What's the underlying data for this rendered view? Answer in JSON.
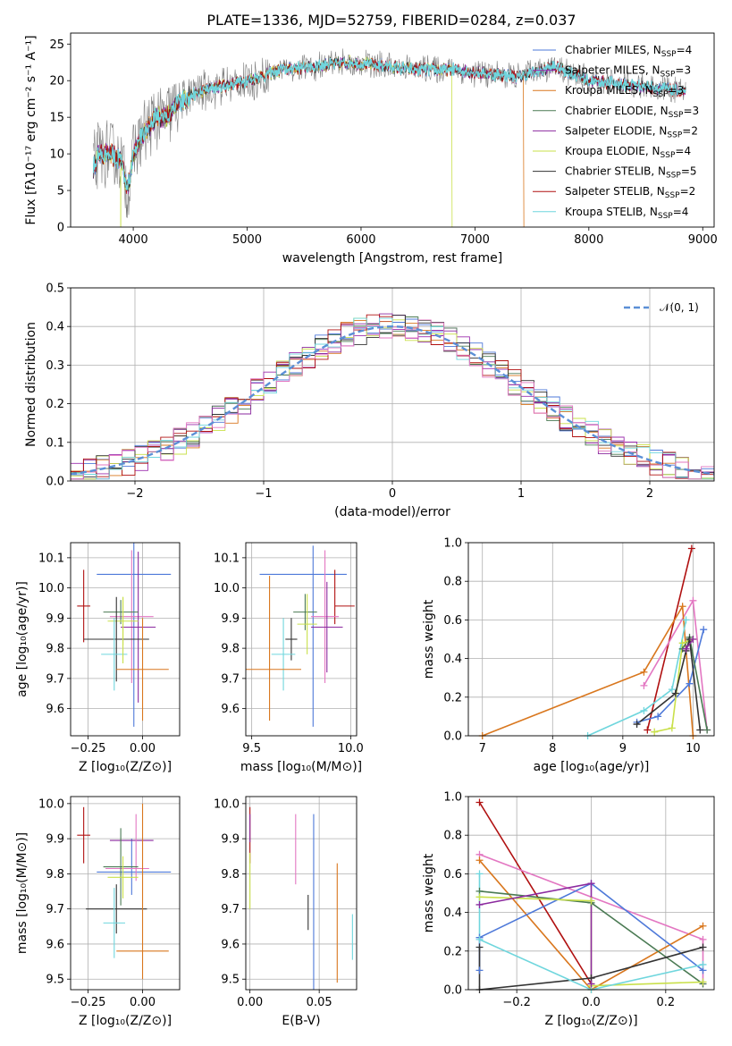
{
  "figure": {
    "title": "PLATE=1336, MJD=52759, FIBERID=0284, z=0.037"
  },
  "colors": {
    "Chabrier MILES": "#4e79d9",
    "Salpeter MILES": "#9c2fae",
    "Kroupa MILES": "#d9771e",
    "Chabrier ELODIE": "#4a7a53",
    "Salpeter ELODIE": "#8b2a9f",
    "Kroupa ELODIE": "#c9e04a",
    "Chabrier STELIB": "#333333",
    "Salpeter STELIB": "#b01010",
    "Kroupa STELIB": "#6fd6dd",
    "pink": "#e377c2",
    "data": "#7f7f7f"
  },
  "chart_data": [
    {
      "id": "spectrum",
      "type": "line",
      "title": "PLATE=1336, MJD=52759, FIBERID=0284, z=0.037",
      "xlabel": "wavelength [Angstrom, rest frame]",
      "ylabel": "Flux [fλ10⁻¹⁷ erg cm⁻² s⁻¹ A⁻¹]",
      "xlim": [
        3450,
        9100
      ],
      "ylim": [
        0,
        26.5
      ],
      "xticks": [
        4000,
        5000,
        6000,
        7000,
        8000,
        9000
      ],
      "yticks": [
        0,
        5,
        10,
        15,
        20,
        25
      ],
      "legend_position": "top-right",
      "legend": [
        {
          "label": "Chabrier MILES, N",
          "sub": "SSP",
          "suffix": "=4",
          "color": "#4e79d9"
        },
        {
          "label": "Salpeter MILES, N",
          "sub": "SSP",
          "suffix": "=3",
          "color": "#9c2fae"
        },
        {
          "label": "Kroupa MILES, N",
          "sub": "SSP",
          "suffix": "=3",
          "color": "#d9771e"
        },
        {
          "label": "Chabrier ELODIE, N",
          "sub": "SSP",
          "suffix": "=3",
          "color": "#4a7a53"
        },
        {
          "label": "Salpeter ELODIE, N",
          "sub": "SSP",
          "suffix": "=2",
          "color": "#8b2a9f"
        },
        {
          "label": "Kroupa ELODIE, N",
          "sub": "SSP",
          "suffix": "=4",
          "color": "#c9e04a"
        },
        {
          "label": "Chabrier STELIB, N",
          "sub": "SSP",
          "suffix": "=5",
          "color": "#333333"
        },
        {
          "label": "Salpeter STELIB, N",
          "sub": "SSP",
          "suffix": "=2",
          "color": "#b01010"
        },
        {
          "label": "Kroupa STELIB, N",
          "sub": "SSP",
          "suffix": "=4",
          "color": "#6fd6dd"
        }
      ],
      "continuum": {
        "x": [
          3650,
          3700,
          3800,
          3900,
          3950,
          4000,
          4100,
          4200,
          4300,
          4400,
          4500,
          4700,
          5000,
          5300,
          5600,
          5900,
          6200,
          6500,
          6800,
          7100,
          7400,
          7700,
          8000,
          8300,
          8600,
          8850
        ],
        "y": [
          8,
          10,
          10,
          9,
          5,
          10,
          13,
          15,
          15,
          17,
          18,
          19,
          20,
          21.5,
          22,
          22.5,
          22,
          21.5,
          21.5,
          21,
          20.5,
          22,
          20,
          19.5,
          19,
          18.5
        ]
      },
      "cutoffs": [
        {
          "x": 6800,
          "color": "#c9e04a"
        },
        {
          "x": 7430,
          "color": "#d9771e"
        },
        {
          "x": 3890,
          "color": "#c9e04a"
        }
      ]
    },
    {
      "id": "residuals",
      "type": "histogram",
      "xlabel": "(data-model)/error",
      "ylabel": "Normed distribution",
      "xlim": [
        -2.5,
        2.5
      ],
      "ylim": [
        0,
        0.5
      ],
      "xticks": [
        -2,
        -1,
        0,
        1,
        2
      ],
      "yticks": [
        0.0,
        0.1,
        0.2,
        0.3,
        0.4,
        0.5
      ],
      "grid": true,
      "bin_width": 0.1,
      "legend": [
        {
          "label": "𝒩(0, 1)",
          "color": "#5b8fd6",
          "style": "dashed"
        }
      ],
      "legend_position": "top-right",
      "amplitude": 0.4,
      "sigma": 1.0
    },
    {
      "id": "age-vs-Z",
      "type": "errorbar",
      "xlabel": "Z [log₁₀(Z/Z⊙)]",
      "ylabel": "age  [log₁₀(age/yr)]",
      "xlim": [
        -0.33,
        0.17
      ],
      "ylim": [
        9.51,
        10.15
      ],
      "xticks": [
        -0.25,
        0.0
      ],
      "yticks": [
        9.6,
        9.7,
        9.8,
        9.9,
        10.0,
        10.1
      ],
      "grid": true,
      "points": [
        {
          "x": -0.04,
          "y": 10.045,
          "xerr": 0.17,
          "yerr": 0,
          "c": "#4e79d9"
        },
        {
          "x": -0.04,
          "y": 9.86,
          "xerr": 0,
          "yerr": 0.32,
          "c": "#4e79d9"
        },
        {
          "x": -0.27,
          "y": 9.94,
          "xerr": 0.03,
          "yerr": 0.12,
          "c": "#b01010"
        },
        {
          "x": -0.05,
          "y": 9.905,
          "xerr": 0.1,
          "yerr": 0.22,
          "c": "#e377c2"
        },
        {
          "x": -0.02,
          "y": 9.87,
          "xerr": 0.08,
          "yerr": 0.25,
          "c": "#8b2a9f"
        },
        {
          "x": -0.1,
          "y": 9.92,
          "xerr": 0.08,
          "yerr": 0.04,
          "c": "#4a7a53"
        },
        {
          "x": -0.09,
          "y": 9.89,
          "xerr": 0.07,
          "yerr": 0.08,
          "c": "#c9e04a"
        },
        {
          "x": -0.12,
          "y": 9.83,
          "xerr": 0.15,
          "yerr": 0.14,
          "c": "#333333"
        },
        {
          "x": -0.13,
          "y": 9.78,
          "xerr": 0.06,
          "yerr": 0.12,
          "c": "#6fd6dd"
        },
        {
          "x": 0.0,
          "y": 9.73,
          "xerr": 0.12,
          "yerr": 0.17,
          "c": "#d9771e"
        },
        {
          "x": -0.09,
          "y": 9.86,
          "xerr": 0,
          "yerr": 0.11,
          "c": "#c9e04a"
        }
      ]
    },
    {
      "id": "age-vs-mass",
      "type": "errorbar",
      "xlabel": "mass [log₁₀(M/M⊙)]",
      "ylabel": "",
      "xlim": [
        9.47,
        10.03
      ],
      "ylim": [
        9.51,
        10.15
      ],
      "xticks": [
        9.5,
        10.0
      ],
      "yticks": [
        9.6,
        9.7,
        9.8,
        9.9,
        10.0,
        10.1
      ],
      "grid": true,
      "points": [
        {
          "x": 9.76,
          "y": 10.045,
          "xerr": 0.22,
          "yerr": 0,
          "c": "#4e79d9"
        },
        {
          "x": 9.81,
          "y": 9.84,
          "xerr": 0,
          "yerr": 0.3,
          "c": "#4e79d9"
        },
        {
          "x": 9.97,
          "y": 9.94,
          "xerr": 0.05,
          "yerr": 0.0,
          "c": "#b01010"
        },
        {
          "x": 9.92,
          "y": 9.97,
          "xerr": 0,
          "yerr": 0.09,
          "c": "#b01010"
        },
        {
          "x": 9.87,
          "y": 9.905,
          "xerr": 0.07,
          "yerr": 0.22,
          "c": "#e377c2"
        },
        {
          "x": 9.88,
          "y": 9.87,
          "xerr": 0.08,
          "yerr": 0.15,
          "c": "#8b2a9f"
        },
        {
          "x": 9.77,
          "y": 9.92,
          "xerr": 0.06,
          "yerr": 0.06,
          "c": "#4a7a53"
        },
        {
          "x": 9.78,
          "y": 9.88,
          "xerr": 0.05,
          "yerr": 0.1,
          "c": "#c9e04a"
        },
        {
          "x": 9.7,
          "y": 9.83,
          "xerr": 0.03,
          "yerr": 0.07,
          "c": "#333333"
        },
        {
          "x": 9.66,
          "y": 9.78,
          "xerr": 0.06,
          "yerr": 0.12,
          "c": "#6fd6dd"
        },
        {
          "x": 9.58,
          "y": 9.73,
          "xerr": 0.17,
          "yerr": 0.0,
          "c": "#d9771e"
        },
        {
          "x": 9.59,
          "y": 9.8,
          "xerr": 0,
          "yerr": 0.24,
          "c": "#d9771e"
        }
      ]
    },
    {
      "id": "mass-weight-vs-age",
      "type": "line",
      "xlabel": "age  [log₁₀(age/yr)]",
      "ylabel": "mass weight",
      "xlim": [
        6.8,
        10.3
      ],
      "ylim": [
        0,
        1.0
      ],
      "xticks": [
        7,
        8,
        9,
        10
      ],
      "yticks": [
        0.0,
        0.2,
        0.4,
        0.6,
        0.8,
        1.0
      ],
      "grid": true,
      "series": [
        {
          "color": "#b01010",
          "x": [
            9.35,
            9.98
          ],
          "y": [
            0.03,
            0.97
          ]
        },
        {
          "color": "#e377c2",
          "x": [
            9.3,
            10.0,
            10.2
          ],
          "y": [
            0.26,
            0.7,
            0.03
          ]
        },
        {
          "color": "#d9771e",
          "x": [
            7.0,
            9.3,
            9.85,
            10.0
          ],
          "y": [
            0.0,
            0.33,
            0.67,
            0.0
          ]
        },
        {
          "color": "#4e79d9",
          "x": [
            9.2,
            9.5,
            9.95,
            10.15
          ],
          "y": [
            0.07,
            0.1,
            0.27,
            0.55
          ]
        },
        {
          "color": "#4a7a53",
          "x": [
            9.85,
            9.95,
            10.2
          ],
          "y": [
            0.45,
            0.51,
            0.03
          ]
        },
        {
          "color": "#c9e04a",
          "x": [
            9.45,
            9.7,
            9.85,
            10.0
          ],
          "y": [
            0.02,
            0.04,
            0.48,
            0.5
          ]
        },
        {
          "color": "#333333",
          "x": [
            9.2,
            9.75,
            9.9,
            9.95,
            10.1
          ],
          "y": [
            0.06,
            0.22,
            0.44,
            0.5,
            0.03
          ]
        },
        {
          "color": "#6fd6dd",
          "x": [
            8.5,
            9.3,
            9.7,
            9.9
          ],
          "y": [
            0.0,
            0.13,
            0.24,
            0.6
          ]
        },
        {
          "color": "#8b2a9f",
          "x": [
            9.9,
            10.0
          ],
          "y": [
            0.45,
            0.5
          ]
        }
      ]
    },
    {
      "id": "mass-vs-Z",
      "type": "errorbar",
      "xlabel": "Z [log₁₀(Z/Z⊙)]",
      "ylabel": "mass [log₁₀(M/M⊙)]",
      "xlim": [
        -0.33,
        0.17
      ],
      "ylim": [
        9.47,
        10.02
      ],
      "xticks": [
        -0.25,
        0.0
      ],
      "yticks": [
        9.5,
        9.6,
        9.7,
        9.8,
        9.9,
        10.0
      ],
      "grid": true,
      "points": [
        {
          "x": -0.27,
          "y": 9.91,
          "xerr": 0.03,
          "yerr": 0.08,
          "c": "#b01010"
        },
        {
          "x": -0.04,
          "y": 9.805,
          "xerr": 0.17,
          "yerr": 0,
          "c": "#4e79d9"
        },
        {
          "x": -0.05,
          "y": 9.82,
          "xerr": 0,
          "yerr": 0.08,
          "c": "#4e79d9"
        },
        {
          "x": -0.05,
          "y": 9.895,
          "xerr": 0.1,
          "yerr": 0.0,
          "c": "#8b2a9f"
        },
        {
          "x": -0.03,
          "y": 9.875,
          "xerr": 0,
          "yerr": 0.095,
          "c": "#e377c2"
        },
        {
          "x": -0.07,
          "y": 9.815,
          "xerr": 0.1,
          "yerr": 0.0,
          "c": "#e377c2"
        },
        {
          "x": -0.1,
          "y": 9.82,
          "xerr": 0.08,
          "yerr": 0.11,
          "c": "#4a7a53"
        },
        {
          "x": -0.09,
          "y": 9.79,
          "xerr": 0.07,
          "yerr": 0.06,
          "c": "#c9e04a"
        },
        {
          "x": -0.12,
          "y": 9.7,
          "xerr": 0.14,
          "yerr": 0.07,
          "c": "#333333"
        },
        {
          "x": -0.13,
          "y": 9.66,
          "xerr": 0.05,
          "yerr": 0.1,
          "c": "#6fd6dd"
        },
        {
          "x": 0.0,
          "y": 9.58,
          "xerr": 0.12,
          "yerr": 0.0,
          "c": "#d9771e"
        },
        {
          "x": 0.0,
          "y": 9.75,
          "xerr": 0,
          "yerr": 0.25,
          "c": "#d9771e"
        }
      ]
    },
    {
      "id": "mass-vs-ebv",
      "type": "errorbar",
      "xlabel": "E(B-V)",
      "ylabel": "",
      "xlim": [
        -0.003,
        0.077
      ],
      "ylim": [
        9.47,
        10.02
      ],
      "xticks": [
        0.0,
        0.05
      ],
      "xticklabels": [
        "0.00",
        "0.05"
      ],
      "yticks": [
        9.5,
        9.6,
        9.7,
        9.8,
        9.9,
        10.0
      ],
      "grid": true,
      "points": [
        {
          "x": 0.0,
          "y": 9.91,
          "xerr": 0,
          "yerr": 0.08,
          "c": "#b01010"
        },
        {
          "x": 0.0,
          "y": 9.78,
          "xerr": 0,
          "yerr": 0.08,
          "c": "#c9e04a"
        },
        {
          "x": 0.0,
          "y": 9.93,
          "xerr": 0,
          "yerr": 0.04,
          "c": "#8b2a9f"
        },
        {
          "x": 0.033,
          "y": 9.87,
          "xerr": 0,
          "yerr": 0.1,
          "c": "#e377c2"
        },
        {
          "x": 0.042,
          "y": 9.69,
          "xerr": 0,
          "yerr": 0.05,
          "c": "#333333"
        },
        {
          "x": 0.046,
          "y": 9.72,
          "xerr": 0,
          "yerr": 0.25,
          "c": "#4e79d9"
        },
        {
          "x": 0.063,
          "y": 9.66,
          "xerr": 0,
          "yerr": 0.17,
          "c": "#d9771e"
        },
        {
          "x": 0.074,
          "y": 9.62,
          "xerr": 0,
          "yerr": 0.065,
          "c": "#6fd6dd"
        }
      ]
    },
    {
      "id": "mass-weight-vs-Z",
      "type": "line",
      "xlabel": "Z [log₁₀(Z/Z⊙)]",
      "ylabel": "mass weight",
      "xlim": [
        -0.33,
        0.33
      ],
      "ylim": [
        0,
        1.0
      ],
      "xticks": [
        -0.2,
        0.0,
        0.2
      ],
      "yticks": [
        0.0,
        0.2,
        0.4,
        0.6,
        0.8,
        1.0
      ],
      "grid": true,
      "series": [
        {
          "color": "#b01010",
          "x": [
            -0.3,
            0.0
          ],
          "y": [
            0.97,
            0.03
          ]
        },
        {
          "color": "#e377c2",
          "x": [
            -0.3,
            0.3,
            0.3
          ],
          "y": [
            0.7,
            0.26,
            0.03
          ]
        },
        {
          "color": "#d9771e",
          "x": [
            -0.3,
            0.0,
            0.3
          ],
          "y": [
            0.67,
            0.0,
            0.33
          ]
        },
        {
          "color": "#4e79d9",
          "x": [
            -0.3,
            -0.3,
            0.0,
            0.3
          ],
          "y": [
            0.1,
            0.27,
            0.55,
            0.1
          ]
        },
        {
          "color": "#4a7a53",
          "x": [
            -0.3,
            0.0,
            0.3
          ],
          "y": [
            0.51,
            0.45,
            0.03
          ]
        },
        {
          "color": "#c9e04a",
          "x": [
            -0.3,
            0.0,
            0.0,
            0.3
          ],
          "y": [
            0.48,
            0.46,
            0.02,
            0.04
          ]
        },
        {
          "color": "#333333",
          "x": [
            -0.3,
            -0.3,
            0.0,
            0.3
          ],
          "y": [
            0.22,
            0.0,
            0.06,
            0.22
          ]
        },
        {
          "color": "#6fd6dd",
          "x": [
            -0.3,
            -0.3,
            0.0,
            0.3
          ],
          "y": [
            0.6,
            0.26,
            0.0,
            0.13
          ]
        },
        {
          "color": "#8b2a9f",
          "x": [
            -0.3,
            0.0,
            0.0
          ],
          "y": [
            0.44,
            0.55,
            0.03
          ]
        }
      ]
    }
  ]
}
